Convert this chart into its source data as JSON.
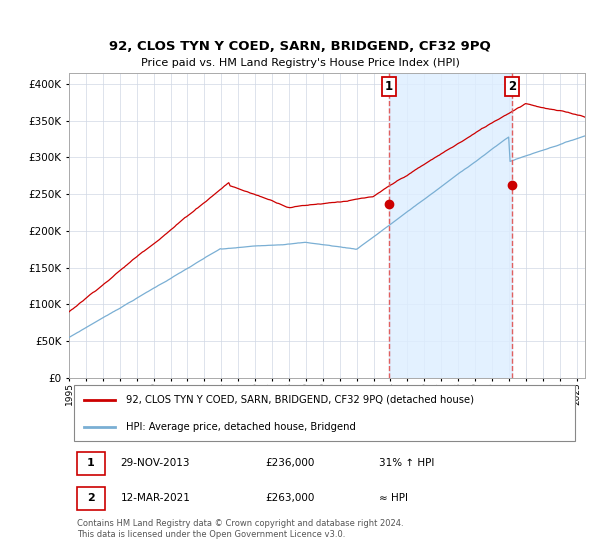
{
  "title": "92, CLOS TYN Y COED, SARN, BRIDGEND, CF32 9PQ",
  "subtitle": "Price paid vs. HM Land Registry's House Price Index (HPI)",
  "ytick_values": [
    0,
    50000,
    100000,
    150000,
    200000,
    250000,
    300000,
    350000,
    400000
  ],
  "ylim": [
    0,
    415000
  ],
  "sale1_x": 2013.917,
  "sale1_price": 236000,
  "sale1_label": "31% ↑ HPI",
  "sale1_date": "29-NOV-2013",
  "sale2_x": 2021.167,
  "sale2_price": 263000,
  "sale2_label": "≈ HPI",
  "sale2_date": "12-MAR-2021",
  "legend_line1": "92, CLOS TYN Y COED, SARN, BRIDGEND, CF32 9PQ (detached house)",
  "legend_line2": "HPI: Average price, detached house, Bridgend",
  "footer": "Contains HM Land Registry data © Crown copyright and database right 2024.\nThis data is licensed under the Open Government Licence v3.0.",
  "price_color": "#cc0000",
  "hpi_color": "#7aafd4",
  "vline_color": "#e06060",
  "shade_color": "#ddeeff",
  "background_color": "#ffffff",
  "grid_color": "#d0d8e4"
}
